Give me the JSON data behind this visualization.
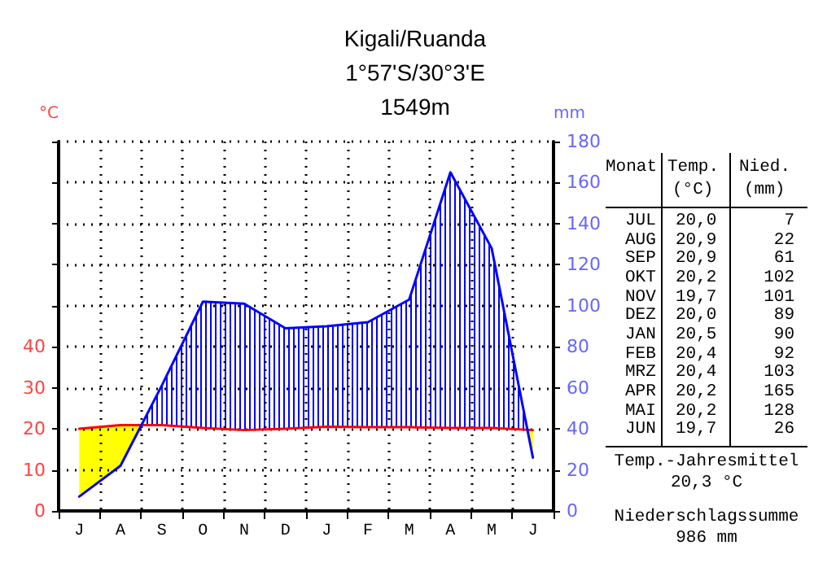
{
  "chart_data": {
    "type": "line",
    "title": "Kigali/Ruanda",
    "subtitle": "1°57'S/30°3'E\n1549m",
    "ylabel": "°C",
    "y2label": "mm",
    "categories": [
      "J",
      "A",
      "S",
      "O",
      "N",
      "D",
      "J",
      "F",
      "M",
      "A",
      "M",
      "J"
    ],
    "series": [
      {
        "color": "#ff0000",
        "values": [
          20.0,
          20.9,
          20.9,
          20.2,
          19.7,
          20.0,
          20.5,
          20.4,
          20.4,
          20.2,
          20.2,
          19.7
        ]
      },
      {
        "axis": "y2",
        "color": "#0000ff",
        "values": [
          7,
          22,
          61,
          102,
          101,
          89,
          90,
          92,
          103,
          165,
          128,
          26
        ]
      }
    ],
    "ylim": [
      0,
      90
    ],
    "yticks": [
      0,
      10,
      20,
      30,
      40,
      {
        "value": 50,
        "label": null
      },
      {
        "value": 60,
        "label": null
      },
      {
        "value": 70,
        "label": null
      },
      {
        "value": 80,
        "label": null
      },
      {
        "value": 90,
        "label": null
      }
    ],
    "y2lim": [
      0,
      180
    ],
    "y2ticks": [
      0,
      20,
      40,
      60,
      80,
      100,
      120,
      140,
      160,
      180
    ],
    "grid": true,
    "marker": "none",
    "line_style": "solid",
    "annotations": [
      "Monat",
      "Temp.",
      "(°C)",
      "Nied.",
      "(mm)",
      "JUL",
      "20,0",
      "7",
      "AUG",
      "20,9",
      "22",
      "SEP",
      "20,9",
      "61",
      "OKT",
      "20,2",
      "102",
      "NOV",
      "19,7",
      "101",
      "DEZ",
      "20,0",
      "89",
      "JAN",
      "20,5",
      "90",
      "FEB",
      "20,4",
      "92",
      "MRZ",
      "20,4",
      "103",
      "APR",
      "20,2",
      "165",
      "MAI",
      "20,2",
      "128",
      "JUN",
      "19,7",
      "26",
      "Temp.-Jahresmittel",
      "20,3 °C",
      "Niederschlagssumme",
      "986 mm"
    ]
  }
}
